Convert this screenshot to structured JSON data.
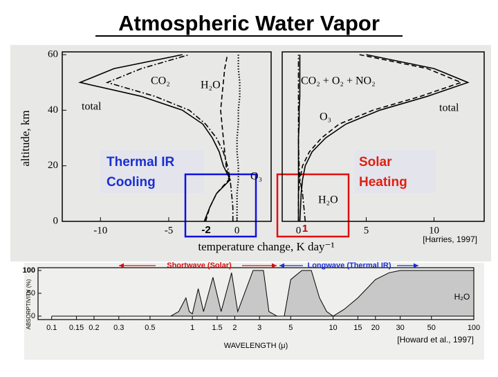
{
  "title": "Atmospheric Water Vapor",
  "chart_data": [
    {
      "type": "line",
      "ylabel": "altitude, km",
      "xlabel": "temperature change, K day⁻¹",
      "y": [
        0,
        5,
        10,
        15,
        20,
        25,
        30,
        35,
        40,
        45,
        50,
        55,
        60
      ],
      "xlim": [
        -12.8,
        2.5
      ],
      "xticks": [
        -10,
        -5,
        0
      ],
      "ylim": [
        0,
        61
      ],
      "yticks": [
        0,
        20,
        40,
        60
      ],
      "series": [
        {
          "name": "total",
          "color": "#000000",
          "style": "solid",
          "values": [
            -2.4,
            -2.0,
            -1.5,
            -0.5,
            -1.0,
            -1.3,
            -1.8,
            -2.5,
            -4,
            -7,
            -11.5,
            -9,
            -4
          ]
        },
        {
          "name": "CO₂",
          "color": "#000000",
          "style": "dashdot",
          "values": [
            -0.3,
            -0.3,
            -0.4,
            -0.5,
            -0.7,
            -1.0,
            -1.5,
            -2.3,
            -3.5,
            -6,
            -9.5,
            -7,
            -3.5
          ]
        },
        {
          "name": "H₂O",
          "color": "#000000",
          "style": "dashed",
          "values": [
            -2.3,
            -2.0,
            -1.5,
            -0.6,
            -0.8,
            -0.9,
            -1.0,
            -1.1,
            -1.2,
            -1.1,
            -1.0,
            -0.9,
            -0.7
          ]
        },
        {
          "name": "O₃",
          "color": "#000000",
          "style": "dotted",
          "values": [
            0,
            0,
            0,
            0.1,
            0.1,
            0,
            0,
            0.1,
            0.1,
            0.2,
            0.2,
            0.1,
            0.1
          ]
        }
      ],
      "annotations": [
        "Thermal IR",
        "Cooling",
        "-2"
      ]
    },
    {
      "type": "line",
      "y": [
        0,
        5,
        10,
        15,
        20,
        25,
        30,
        35,
        40,
        45,
        50,
        55,
        60
      ],
      "xlim": [
        -1.2,
        13.7
      ],
      "xticks": [
        0,
        5,
        10
      ],
      "ylim": [
        0,
        61
      ],
      "series": [
        {
          "name": "total",
          "color": "#000000",
          "style": "solid",
          "values": [
            0.1,
            0.15,
            0.2,
            0.3,
            0.5,
            1.0,
            2.0,
            3.5,
            6,
            9.5,
            12.5,
            10,
            5
          ]
        },
        {
          "name": "CO₂ + O₂ + NO₂",
          "color": "#000000",
          "style": "solid",
          "values": [
            0,
            0,
            0,
            0,
            0,
            0,
            0,
            0.05,
            0.05,
            0.1,
            0.1,
            0.1,
            0.1
          ]
        },
        {
          "name": "O₃",
          "color": "#000000",
          "style": "dashed",
          "values": [
            0,
            0,
            0,
            0.1,
            0.3,
            0.8,
            1.7,
            3,
            5.5,
            9,
            12,
            9.5,
            4.5
          ]
        },
        {
          "name": "H₂O",
          "color": "#000000",
          "style": "dashdot",
          "values": [
            0.5,
            0.4,
            0.3,
            0.1,
            0.05,
            0.02,
            0,
            0,
            0,
            0,
            0,
            0,
            0
          ]
        }
      ],
      "annotations": [
        "Solar",
        "Heating",
        "1",
        "[Harries, 1997]"
      ]
    },
    {
      "type": "area",
      "xlabel": "WAVELENGTH (μ)",
      "ylabel": "ABSORPTIVITY (%)",
      "log_x": true,
      "x": [
        0.1,
        0.7,
        0.8,
        0.9,
        0.95,
        1.0,
        1.1,
        1.2,
        1.4,
        1.6,
        1.9,
        2.1,
        2.7,
        3.2,
        3.5,
        4,
        4.5,
        5,
        6,
        7,
        8,
        9,
        10,
        12,
        15,
        20,
        25,
        30,
        50,
        100
      ],
      "xlim": [
        0.08,
        100
      ],
      "xticks": [
        0.1,
        0.15,
        0.2,
        0.3,
        0.5,
        1,
        1.5,
        2,
        3,
        5,
        10,
        15,
        20,
        30,
        50,
        100
      ],
      "ylim": [
        0,
        100
      ],
      "yticks": [
        0,
        50,
        100
      ],
      "series": [
        {
          "name": "H₂O",
          "color": "#c8c8c8",
          "values": [
            0,
            0,
            10,
            40,
            10,
            5,
            60,
            10,
            85,
            10,
            95,
            10,
            100,
            100,
            10,
            0,
            0,
            80,
            100,
            100,
            40,
            10,
            0,
            15,
            40,
            80,
            95,
            100,
            100,
            100
          ]
        }
      ],
      "annotations": [
        "Shortwave (Solar)",
        "Longwave (Thermal IR)",
        "[Howard et al., 1997]"
      ]
    }
  ]
}
